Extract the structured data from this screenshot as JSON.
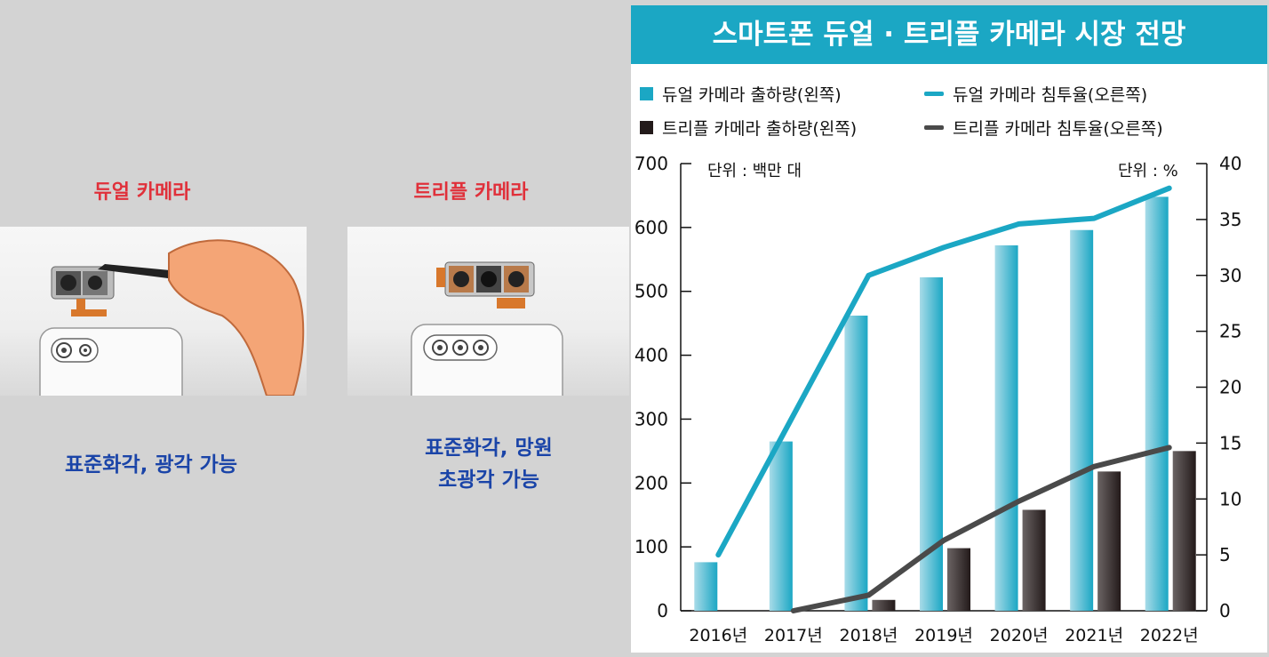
{
  "left_panel": {
    "dual": {
      "label": "듀얼 카메라",
      "desc_lines": [
        "표준화각, 광각 가능"
      ]
    },
    "triple": {
      "label": "트리플 카메라",
      "desc_lines": [
        "표준화각, 망원",
        "초광각 가능"
      ]
    }
  },
  "chart_data": {
    "type": "bar",
    "title": "스마트폰 듀얼 · 트리플 카메라 시장 전망",
    "categories": [
      "2016년",
      "2017년",
      "2018년",
      "2019년",
      "2020년",
      "2021년",
      "2022년"
    ],
    "units": {
      "left": "단위 : 백만 대",
      "right": "단위 : %"
    },
    "left_axis": {
      "min": 0,
      "max": 700,
      "ticks": [
        0,
        100,
        200,
        300,
        400,
        500,
        600,
        700
      ]
    },
    "right_axis": {
      "min": 0,
      "max": 40,
      "ticks": [
        0,
        5,
        10,
        15,
        20,
        25,
        30,
        35,
        40
      ]
    },
    "series": [
      {
        "name": "듀얼 카메라 출하량(왼쪽)",
        "type": "bar",
        "axis": "left",
        "color": "#1ba7c4",
        "values": [
          76,
          265,
          462,
          522,
          572,
          596,
          648
        ]
      },
      {
        "name": "트리플 카메라 출하량(왼쪽)",
        "type": "bar",
        "axis": "left",
        "color": "#231a1a",
        "values": [
          0,
          0,
          17,
          98,
          158,
          218,
          250
        ]
      },
      {
        "name": "듀얼 카메라 침투율(오른쪽)",
        "type": "line",
        "axis": "right",
        "color": "#1ba7c4",
        "values": [
          5,
          17.5,
          30,
          32.5,
          34.6,
          35.1,
          37.8
        ]
      },
      {
        "name": "트리플 카메라 침투율(오른쪽)",
        "type": "line",
        "axis": "right",
        "color": "#4a4a4a",
        "values": [
          null,
          0,
          1.4,
          6.3,
          9.8,
          12.9,
          14.6
        ]
      }
    ],
    "legend_position": "top"
  }
}
